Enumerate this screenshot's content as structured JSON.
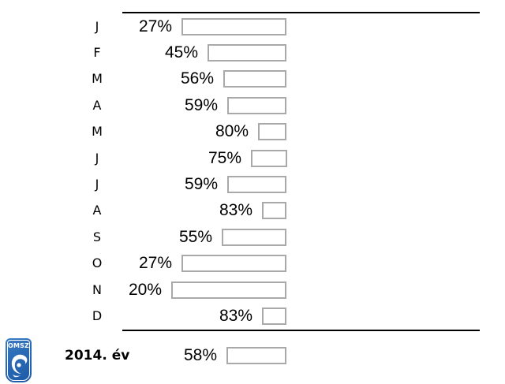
{
  "chart_data": {
    "type": "bar",
    "orientation": "horizontal",
    "title": "",
    "categories": [
      "J",
      "F",
      "M",
      "A",
      "M",
      "J",
      "J",
      "A",
      "S",
      "O",
      "N",
      "D"
    ],
    "values": [
      27,
      45,
      56,
      59,
      80,
      75,
      59,
      83,
      55,
      27,
      20,
      83
    ],
    "value_suffix": "%",
    "axis_range": [
      0,
      100
    ],
    "bar_style": "outline-from-value-to-max",
    "legend": "none",
    "grid": "off",
    "annual": {
      "label": "2014. év",
      "value": 58
    }
  },
  "logo": {
    "text": "OMSZ"
  },
  "colors": {
    "bar_border": "#a9a9a9",
    "bar_fill": "#ffffff",
    "rule": "#000000",
    "text": "#000000",
    "logo_blue": "#2a6ab5",
    "logo_text": "#ffffff"
  }
}
